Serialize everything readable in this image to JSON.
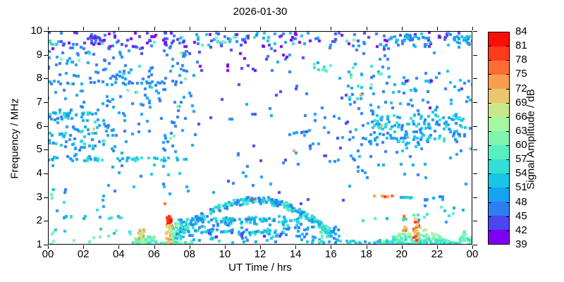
{
  "title": "2026-01-30",
  "axes": {
    "x": {
      "label": "UT Time / hrs",
      "ticks": [
        {
          "label": "00",
          "hour": 0
        },
        {
          "label": "02",
          "hour": 2
        },
        {
          "label": "04",
          "hour": 4
        },
        {
          "label": "06",
          "hour": 6
        },
        {
          "label": "08",
          "hour": 8
        },
        {
          "label": "10",
          "hour": 10
        },
        {
          "label": "12",
          "hour": 12
        },
        {
          "label": "14",
          "hour": 14
        },
        {
          "label": "16",
          "hour": 16
        },
        {
          "label": "18",
          "hour": 18
        },
        {
          "label": "20",
          "hour": 20
        },
        {
          "label": "22",
          "hour": 22
        },
        {
          "label": "00",
          "hour": 24
        }
      ]
    },
    "y": {
      "label": "Frequency / MHz",
      "ticks": [
        {
          "label": "1",
          "mhz": 1
        },
        {
          "label": "2",
          "mhz": 2
        },
        {
          "label": "3",
          "mhz": 3
        },
        {
          "label": "4",
          "mhz": 4
        },
        {
          "label": "5",
          "mhz": 5
        },
        {
          "label": "6",
          "mhz": 6
        },
        {
          "label": "7",
          "mhz": 7
        },
        {
          "label": "8",
          "mhz": 8
        },
        {
          "label": "9",
          "mhz": 9
        },
        {
          "label": "10",
          "mhz": 10
        }
      ]
    }
  },
  "colorbar": {
    "label": "Signal Amplitude / dB",
    "min": 39,
    "max": 84,
    "step": 3,
    "tick_labels": [
      "39",
      "42",
      "45",
      "48",
      "51",
      "54",
      "57",
      "60",
      "63",
      "66",
      "69",
      "72",
      "75",
      "78",
      "81",
      "84"
    ],
    "segment_colors_low_to_high": [
      "#7e00f2",
      "#4b46ee",
      "#2e7df2",
      "#15a4f2",
      "#16c6e7",
      "#34ded4",
      "#58f0c3",
      "#80f5b0",
      "#a7f7a0",
      "#c9e88a",
      "#ebc66c",
      "#f99e4c",
      "#ff6c33",
      "#ff3a1d",
      "#fb0f08"
    ]
  },
  "chart_data": {
    "type": "scatter",
    "title": "2026-01-30",
    "xlabel": "UT Time / hrs",
    "ylabel": "Frequency / MHz",
    "zlabel": "Signal Amplitude / dB",
    "xlim": [
      0,
      24
    ],
    "ylim": [
      1,
      10
    ],
    "amplitude_range_db": [
      39,
      84
    ],
    "clusters": [
      {
        "name": "top-band-morning",
        "shape": "uniform",
        "x": [
          0,
          8.3
        ],
        "y": [
          9.25,
          9.95
        ],
        "n": 90,
        "amp": [
          39,
          48
        ]
      },
      {
        "name": "top-band-morning-cyan-run",
        "shape": "uniform",
        "x": [
          0,
          0.6
        ],
        "y": [
          9.35,
          9.6
        ],
        "n": 6,
        "amp": [
          51,
          57
        ]
      },
      {
        "name": "top-band-cyan-sprinkle",
        "shape": "uniform",
        "x": [
          0,
          14
        ],
        "y": [
          9.4,
          9.75
        ],
        "n": 10,
        "amp": [
          51,
          60
        ]
      },
      {
        "name": "top-band-midday",
        "shape": "uniform",
        "x": [
          8.3,
          14.6
        ],
        "y": [
          9.3,
          9.95
        ],
        "n": 55,
        "amp": [
          39,
          54
        ]
      },
      {
        "name": "top-band-midday-green",
        "shape": "uniform",
        "x": [
          9.4,
          10.6
        ],
        "y": [
          9.5,
          9.8
        ],
        "n": 8,
        "amp": [
          54,
          63
        ]
      },
      {
        "name": "top-band-afternoon",
        "shape": "uniform",
        "x": [
          14.6,
          19.5
        ],
        "y": [
          9.35,
          9.95
        ],
        "n": 30,
        "amp": [
          39,
          51
        ]
      },
      {
        "name": "top-band-evening",
        "shape": "uniform",
        "x": [
          19.5,
          24
        ],
        "y": [
          9.3,
          9.95
        ],
        "n": 40,
        "amp": [
          39,
          54
        ]
      },
      {
        "name": "top-band-evening-blue",
        "shape": "uniform",
        "x": [
          19.3,
          21.8
        ],
        "y": [
          9.35,
          9.8
        ],
        "n": 22,
        "amp": [
          45,
          54
        ]
      },
      {
        "name": "top-band-late-blue",
        "shape": "uniform",
        "x": [
          22.8,
          23.9
        ],
        "y": [
          9.5,
          9.8
        ],
        "n": 14,
        "amp": [
          45,
          54
        ]
      },
      {
        "name": "below-top-band",
        "shape": "uniform",
        "x": [
          0,
          24
        ],
        "y": [
          9.0,
          9.3
        ],
        "n": 12,
        "amp": [
          42,
          48
        ]
      },
      {
        "name": "morning-mid-scatter",
        "shape": "uniform",
        "x": [
          0,
          8.5
        ],
        "y": [
          4.7,
          9.2
        ],
        "n": 210,
        "amp": [
          45,
          51
        ]
      },
      {
        "name": "morning-mid-dense",
        "shape": "uniform",
        "x": [
          0,
          3.2
        ],
        "y": [
          5.1,
          6.6
        ],
        "n": 55,
        "amp": [
          45,
          57
        ]
      },
      {
        "name": "morning-greens",
        "shape": "uniform",
        "x": [
          0,
          8
        ],
        "y": [
          4.5,
          9.2
        ],
        "n": 15,
        "amp": [
          54,
          63
        ]
      },
      {
        "name": "line-4p6-morning",
        "shape": "hline",
        "x": [
          0,
          8.2
        ],
        "yv": 4.6,
        "jitter": 0.07,
        "n": 50,
        "amp": [
          48,
          57
        ]
      },
      {
        "name": "line-7p8-morning",
        "shape": "hline",
        "x": [
          0,
          6.5
        ],
        "yv": 7.82,
        "jitter": 0.06,
        "n": 22,
        "amp": [
          45,
          51
        ]
      },
      {
        "name": "line-6p5-morning",
        "shape": "hline",
        "x": [
          0,
          2.5
        ],
        "yv": 6.5,
        "jitter": 0.07,
        "n": 14,
        "amp": [
          48,
          57
        ]
      },
      {
        "name": "midday-upper-sparse",
        "shape": "uniform",
        "x": [
          8.5,
          17
        ],
        "y": [
          4.2,
          9.2
        ],
        "n": 50,
        "amp": [
          42,
          51
        ]
      },
      {
        "name": "midday-subtop-purple",
        "shape": "uniform",
        "x": [
          8.5,
          14
        ],
        "y": [
          8.2,
          9.2
        ],
        "n": 15,
        "amp": [
          39,
          45
        ]
      },
      {
        "name": "evening-mid-scatter",
        "shape": "uniform",
        "x": [
          17,
          24
        ],
        "y": [
          4.6,
          8.3
        ],
        "n": 140,
        "amp": [
          45,
          54
        ]
      },
      {
        "name": "evening-upper-purples",
        "shape": "uniform",
        "x": [
          20,
          24
        ],
        "y": [
          6.5,
          9.0
        ],
        "n": 5,
        "amp": [
          39,
          45
        ]
      },
      {
        "name": "evening-band-5p3-6p3",
        "shape": "uniform",
        "x": [
          18.3,
          23.6
        ],
        "y": [
          5.3,
          6.3
        ],
        "n": 100,
        "amp": [
          45,
          57
        ]
      },
      {
        "name": "line-6p4-evening",
        "shape": "hline",
        "x": [
          18.5,
          23.3
        ],
        "yv": 6.38,
        "jitter": 0.08,
        "n": 22,
        "amp": [
          48,
          57
        ]
      },
      {
        "name": "evening-upper-greens",
        "shape": "uniform",
        "x": [
          17,
          19
        ],
        "y": [
          6.8,
          8.6
        ],
        "n": 10,
        "amp": [
          54,
          63
        ]
      },
      {
        "name": "green-cluster-8p4MHz",
        "shape": "uniform",
        "x": [
          14.9,
          16.2
        ],
        "y": [
          8.3,
          8.6
        ],
        "n": 8,
        "amp": [
          54,
          63
        ]
      },
      {
        "name": "afternoon-transition",
        "shape": "uniform",
        "x": [
          14,
          18
        ],
        "y": [
          4.3,
          8.3
        ],
        "n": 22,
        "amp": [
          45,
          51
        ]
      },
      {
        "name": "low-mid-sparse",
        "shape": "uniform",
        "x": [
          0,
          24
        ],
        "y": [
          3.2,
          4.5
        ],
        "n": 20,
        "amp": [
          45,
          51
        ]
      },
      {
        "name": "morning-3-4MHz",
        "shape": "uniform",
        "x": [
          4,
          8
        ],
        "y": [
          3.1,
          4.4
        ],
        "n": 12,
        "amp": [
          45,
          54
        ]
      },
      {
        "name": "night-2p3-3p1",
        "shape": "uniform",
        "x": [
          0.5,
          4.5
        ],
        "y": [
          2.3,
          3.1
        ],
        "n": 6,
        "amp": [
          48,
          57
        ]
      },
      {
        "name": "left-edge-3MHz",
        "shape": "uniform",
        "x": [
          0,
          0.5
        ],
        "y": [
          2.9,
          3.4
        ],
        "n": 4,
        "amp": [
          51,
          60
        ]
      },
      {
        "name": "line-2p15-night",
        "shape": "hline",
        "x": [
          0.8,
          4.2
        ],
        "yv": 2.15,
        "jitter": 0.05,
        "n": 13,
        "amp": [
          48,
          57
        ]
      },
      {
        "name": "night-low-sparse",
        "shape": "uniform",
        "x": [
          0,
          4.8
        ],
        "y": [
          1.0,
          1.7
        ],
        "n": 16,
        "amp": [
          48,
          63
        ]
      },
      {
        "name": "dawn-cluster",
        "shape": "uniform",
        "x": [
          4.9,
          6.2
        ],
        "y": [
          1.0,
          1.35
        ],
        "n": 45,
        "amp": [
          54,
          66
        ]
      },
      {
        "name": "dawn-column-orange",
        "shape": "uniform",
        "x": [
          5.15,
          5.45
        ],
        "y": [
          1.0,
          1.65
        ],
        "n": 22,
        "amp": [
          63,
          75
        ]
      },
      {
        "name": "baseline-row-morning",
        "shape": "hline",
        "x": [
          4.8,
          8.2
        ],
        "yv": 1.07,
        "jitter": 0.06,
        "n": 55,
        "amp": [
          54,
          66
        ]
      },
      {
        "name": "red-blob-07h",
        "shape": "uniform",
        "x": [
          6.72,
          7.0
        ],
        "y": [
          1.78,
          2.18
        ],
        "n": 22,
        "amp": [
          78,
          84
        ]
      },
      {
        "name": "sunrise-column-orange",
        "shape": "uniform",
        "x": [
          6.68,
          7.05
        ],
        "y": [
          1.0,
          1.8
        ],
        "n": 28,
        "amp": [
          66,
          78
        ]
      },
      {
        "name": "sunrise-transition",
        "shape": "uniform",
        "x": [
          7.0,
          7.6
        ],
        "y": [
          1.2,
          1.9
        ],
        "n": 35,
        "amp": [
          54,
          66
        ]
      },
      {
        "name": "daytime-arc-trace",
        "shape": "arc",
        "x": [
          7.2,
          16.2
        ],
        "xc": 11.7,
        "ypeak": 2.85,
        "yedge": 1.35,
        "jitter": 0.14,
        "n": 250,
        "amp": [
          45,
          60
        ]
      },
      {
        "name": "daytime-fill",
        "shape": "uniform",
        "x": [
          7.5,
          14.5
        ],
        "y": [
          1.1,
          2.2
        ],
        "n": 110,
        "amp": [
          45,
          57
        ]
      },
      {
        "name": "line-1p55-day",
        "shape": "hline",
        "x": [
          7.5,
          13.5
        ],
        "yv": 1.55,
        "jitter": 0.05,
        "n": 40,
        "amp": [
          48,
          57
        ]
      },
      {
        "name": "line-2p0-day",
        "shape": "hline",
        "x": [
          7.3,
          14.2
        ],
        "yv": 2.02,
        "jitter": 0.08,
        "n": 60,
        "amp": [
          45,
          57
        ]
      },
      {
        "name": "day-underside-purple",
        "shape": "uniform",
        "x": [
          8.5,
          13.5
        ],
        "y": [
          1.25,
          1.55
        ],
        "n": 8,
        "amp": [
          39,
          45
        ]
      },
      {
        "name": "afternoon-tail",
        "shape": "uniform",
        "x": [
          14,
          16.5
        ],
        "y": [
          1.05,
          1.8
        ],
        "n": 35,
        "amp": [
          45,
          54
        ]
      },
      {
        "name": "tail-greens-15p5h",
        "shape": "uniform",
        "x": [
          15.3,
          15.9
        ],
        "y": [
          1.15,
          1.75
        ],
        "n": 12,
        "amp": [
          54,
          63
        ]
      },
      {
        "name": "dusk-baseline-row",
        "shape": "hline",
        "x": [
          16.3,
          18.8
        ],
        "yv": 1.1,
        "jitter": 0.08,
        "n": 18,
        "amp": [
          48,
          57
        ]
      },
      {
        "name": "evening-mound",
        "shape": "mound",
        "x": [
          18.8,
          23.2
        ],
        "xc": 20.9,
        "ymax": 1.85,
        "n": 190,
        "amp": [
          51,
          72
        ]
      },
      {
        "name": "evening-core-column",
        "shape": "uniform",
        "x": [
          20.7,
          21.0
        ],
        "y": [
          1.0,
          2.15
        ],
        "n": 24,
        "amp": [
          69,
          81
        ]
      },
      {
        "name": "evening-column-20h",
        "shape": "uniform",
        "x": [
          20.05,
          20.25
        ],
        "y": [
          1.5,
          2.25
        ],
        "n": 10,
        "amp": [
          66,
          78
        ]
      },
      {
        "name": "evening-cyan-above-mound",
        "shape": "uniform",
        "x": [
          17.8,
          23
        ],
        "y": [
          1.9,
          2.6
        ],
        "n": 16,
        "amp": [
          48,
          60
        ]
      },
      {
        "name": "green-column-23p4h",
        "shape": "uniform",
        "x": [
          23.3,
          23.65
        ],
        "y": [
          1.0,
          1.55
        ],
        "n": 14,
        "amp": [
          57,
          66
        ]
      },
      {
        "name": "trailing-greens",
        "shape": "uniform",
        "x": [
          23.75,
          24
        ],
        "y": [
          1.0,
          1.35
        ],
        "n": 7,
        "amp": [
          54,
          63
        ]
      },
      {
        "name": "red-row-3MHz-evening",
        "shape": "hline",
        "x": [
          18.4,
          19.6
        ],
        "yv": 3.02,
        "jitter": 0.04,
        "n": 8,
        "amp": [
          72,
          81
        ]
      },
      {
        "name": "cyan-row-3MHz-evening",
        "shape": "hline",
        "x": [
          19.7,
          20.6
        ],
        "yv": 3.0,
        "jitter": 0.04,
        "n": 6,
        "amp": [
          48,
          57
        ]
      },
      {
        "name": "blue-row-3MHz-evening",
        "shape": "hline",
        "x": [
          21,
          22.6
        ],
        "yv": 2.95,
        "jitter": 0.1,
        "n": 6,
        "amp": [
          45,
          51
        ]
      },
      {
        "name": "pm-low-mid-sparse",
        "shape": "uniform",
        "x": [
          8,
          18
        ],
        "y": [
          2.3,
          4.2
        ],
        "n": 16,
        "amp": [
          42,
          51
        ]
      },
      {
        "name": "evening-2p4-4p5",
        "shape": "uniform",
        "x": [
          20.5,
          24
        ],
        "y": [
          2.4,
          4.5
        ],
        "n": 8,
        "amp": [
          45,
          54
        ]
      },
      {
        "name": "right-subtop-sparse",
        "shape": "uniform",
        "x": [
          14,
          24
        ],
        "y": [
          8.4,
          9.3
        ],
        "n": 10,
        "amp": [
          45,
          51
        ]
      }
    ],
    "notable_points": [
      {
        "x": 2.6,
        "y": 5.88,
        "amp": 70
      },
      {
        "x": 13.9,
        "y": 4.95,
        "amp": 72
      },
      {
        "x": 17.7,
        "y": 7.3,
        "amp": 72
      },
      {
        "x": 11.56,
        "y": 2.9,
        "amp": 78
      },
      {
        "x": 6.6,
        "y": 2.73,
        "amp": 75
      },
      {
        "x": 18.9,
        "y": 6.02,
        "amp": 69
      },
      {
        "x": 17.3,
        "y": 9.62,
        "amp": 60
      },
      {
        "x": 16.9,
        "y": 9.58,
        "amp": 57
      }
    ]
  }
}
